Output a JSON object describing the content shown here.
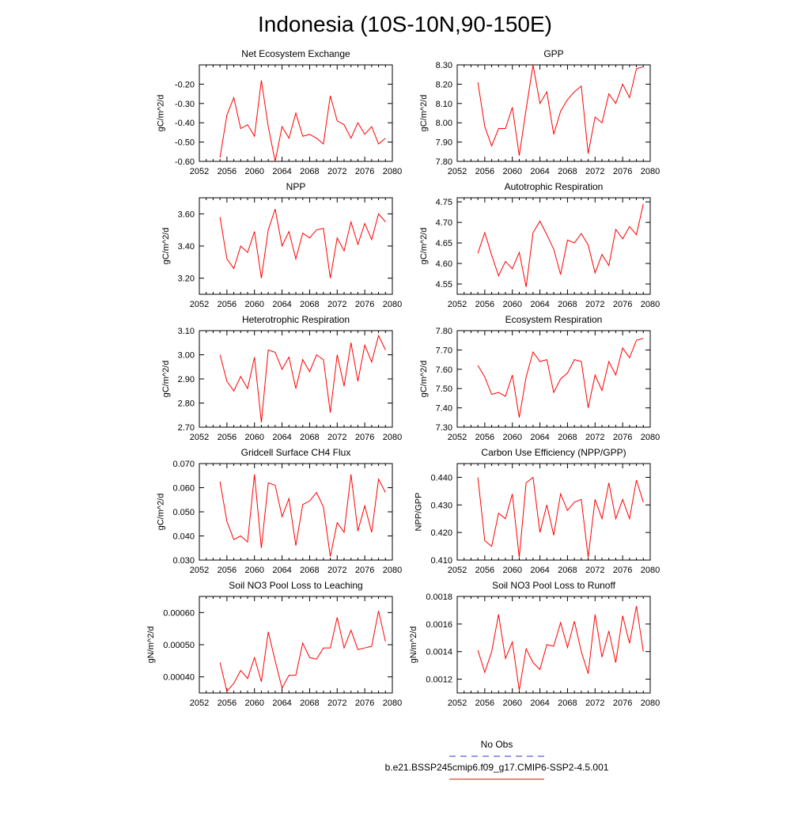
{
  "page": {
    "title": "Indonesia (10S-10N,90-150E)",
    "legend": {
      "obs_label": "No Obs",
      "obs_color": "#3333cc",
      "model_label": "b.e21.BSSP245cmip6.f09_g17.CMIP6-SSP2-4.5.001",
      "model_color": "#ff0000"
    }
  },
  "chart_data": [
    {
      "type": "line",
      "title": "Net Ecosystem Exchange",
      "xlabel": "",
      "ylabel": "gC/m^2/d",
      "xlim": [
        2052,
        2080
      ],
      "ylim": [
        -0.6,
        -0.1
      ],
      "xticks": [
        "2052",
        "2056",
        "2060",
        "2064",
        "2068",
        "2072",
        "2076",
        "2080"
      ],
      "yticks": [
        "-0.60",
        "-0.50",
        "-0.40",
        "-0.30",
        "-0.20"
      ],
      "color": "#ff0000",
      "x": [
        2055,
        2056,
        2057,
        2058,
        2059,
        2060,
        2061,
        2062,
        2063,
        2064,
        2065,
        2066,
        2067,
        2068,
        2069,
        2070,
        2071,
        2072,
        2073,
        2074,
        2075,
        2076,
        2077,
        2078,
        2079
      ],
      "values": [
        -0.58,
        -0.36,
        -0.27,
        -0.43,
        -0.41,
        -0.47,
        -0.18,
        -0.42,
        -0.6,
        -0.42,
        -0.48,
        -0.35,
        -0.47,
        -0.46,
        -0.48,
        -0.51,
        -0.26,
        -0.39,
        -0.41,
        -0.48,
        -0.4,
        -0.46,
        -0.42,
        -0.51,
        -0.48
      ]
    },
    {
      "type": "line",
      "title": "GPP",
      "xlabel": "",
      "ylabel": "gC/m^2/d",
      "xlim": [
        2052,
        2080
      ],
      "ylim": [
        7.8,
        8.3
      ],
      "xticks": [
        "2052",
        "2056",
        "2060",
        "2064",
        "2068",
        "2072",
        "2076",
        "2080"
      ],
      "yticks": [
        "7.80",
        "7.90",
        "8.00",
        "8.10",
        "8.20",
        "8.30"
      ],
      "color": "#ff0000",
      "x": [
        2055,
        2056,
        2057,
        2058,
        2059,
        2060,
        2061,
        2062,
        2063,
        2064,
        2065,
        2066,
        2067,
        2068,
        2069,
        2070,
        2071,
        2072,
        2073,
        2074,
        2075,
        2076,
        2077,
        2078,
        2079
      ],
      "values": [
        8.21,
        7.98,
        7.88,
        7.97,
        7.97,
        8.08,
        7.83,
        8.07,
        8.3,
        8.1,
        8.16,
        7.94,
        8.06,
        8.12,
        8.16,
        8.19,
        7.84,
        8.03,
        8.0,
        8.15,
        8.1,
        8.2,
        8.13,
        8.28,
        8.29
      ]
    },
    {
      "type": "line",
      "title": "NPP",
      "xlabel": "",
      "ylabel": "gC/m^2/d",
      "xlim": [
        2052,
        2080
      ],
      "ylim": [
        3.1,
        3.7
      ],
      "xticks": [
        "2052",
        "2056",
        "2060",
        "2064",
        "2068",
        "2072",
        "2076",
        "2080"
      ],
      "yticks": [
        "3.20",
        "3.40",
        "3.60"
      ],
      "color": "#ff0000",
      "x": [
        2055,
        2056,
        2057,
        2058,
        2059,
        2060,
        2061,
        2062,
        2063,
        2064,
        2065,
        2066,
        2067,
        2068,
        2069,
        2070,
        2071,
        2072,
        2073,
        2074,
        2075,
        2076,
        2077,
        2078,
        2079
      ],
      "values": [
        3.58,
        3.32,
        3.26,
        3.4,
        3.36,
        3.49,
        3.2,
        3.5,
        3.63,
        3.4,
        3.49,
        3.32,
        3.48,
        3.45,
        3.5,
        3.51,
        3.2,
        3.45,
        3.37,
        3.55,
        3.41,
        3.54,
        3.44,
        3.6,
        3.55
      ]
    },
    {
      "type": "line",
      "title": "Autotrophic Respiration",
      "xlabel": "",
      "ylabel": "gC/m^2/d",
      "xlim": [
        2052,
        2080
      ],
      "ylim": [
        4.525,
        4.76
      ],
      "xticks": [
        "2052",
        "2056",
        "2060",
        "2064",
        "2068",
        "2072",
        "2076",
        "2080"
      ],
      "yticks": [
        "4.55",
        "4.60",
        "4.65",
        "4.70",
        "4.75"
      ],
      "color": "#ff0000",
      "x": [
        2055,
        2056,
        2057,
        2058,
        2059,
        2060,
        2061,
        2062,
        2063,
        2064,
        2065,
        2066,
        2067,
        2068,
        2069,
        2070,
        2071,
        2072,
        2073,
        2074,
        2075,
        2076,
        2077,
        2078,
        2079
      ],
      "values": [
        4.625,
        4.675,
        4.62,
        4.57,
        4.605,
        4.587,
        4.627,
        4.543,
        4.675,
        4.703,
        4.67,
        4.635,
        4.573,
        4.657,
        4.65,
        4.673,
        4.645,
        4.577,
        4.622,
        4.595,
        4.683,
        4.66,
        4.69,
        4.67,
        4.745
      ]
    },
    {
      "type": "line",
      "title": "Heterotrophic Respiration",
      "xlabel": "",
      "ylabel": "gC/m^2/d",
      "xlim": [
        2052,
        2080
      ],
      "ylim": [
        2.7,
        3.1
      ],
      "xticks": [
        "2052",
        "2056",
        "2060",
        "2064",
        "2068",
        "2072",
        "2076",
        "2080"
      ],
      "yticks": [
        "2.70",
        "2.80",
        "2.90",
        "3.00",
        "3.10"
      ],
      "color": "#ff0000",
      "x": [
        2055,
        2056,
        2057,
        2058,
        2059,
        2060,
        2061,
        2062,
        2063,
        2064,
        2065,
        2066,
        2067,
        2068,
        2069,
        2070,
        2071,
        2072,
        2073,
        2074,
        2075,
        2076,
        2077,
        2078,
        2079
      ],
      "values": [
        3.0,
        2.89,
        2.85,
        2.91,
        2.86,
        2.99,
        2.72,
        3.02,
        3.01,
        2.94,
        2.99,
        2.86,
        2.98,
        2.93,
        3.0,
        2.98,
        2.76,
        3.0,
        2.87,
        3.05,
        2.89,
        3.04,
        2.97,
        3.08,
        3.02
      ]
    },
    {
      "type": "line",
      "title": "Ecosystem Respiration",
      "xlabel": "",
      "ylabel": "gC/m^2/d",
      "xlim": [
        2052,
        2080
      ],
      "ylim": [
        7.3,
        7.8
      ],
      "xticks": [
        "2052",
        "2056",
        "2060",
        "2064",
        "2068",
        "2072",
        "2076",
        "2080"
      ],
      "yticks": [
        "7.30",
        "7.40",
        "7.50",
        "7.60",
        "7.70",
        "7.80"
      ],
      "color": "#ff0000",
      "x": [
        2055,
        2056,
        2057,
        2058,
        2059,
        2060,
        2061,
        2062,
        2063,
        2064,
        2065,
        2066,
        2067,
        2068,
        2069,
        2070,
        2071,
        2072,
        2073,
        2074,
        2075,
        2076,
        2077,
        2078,
        2079
      ],
      "values": [
        7.62,
        7.56,
        7.47,
        7.48,
        7.46,
        7.57,
        7.35,
        7.56,
        7.69,
        7.64,
        7.65,
        7.48,
        7.55,
        7.58,
        7.65,
        7.64,
        7.4,
        7.57,
        7.49,
        7.64,
        7.57,
        7.71,
        7.66,
        7.75,
        7.76
      ]
    },
    {
      "type": "line",
      "title": "Gridcell Surface CH4 Flux",
      "xlabel": "",
      "ylabel": "gC/m^2/d",
      "xlim": [
        2052,
        2080
      ],
      "ylim": [
        0.03,
        0.07
      ],
      "xticks": [
        "2052",
        "2056",
        "2060",
        "2064",
        "2068",
        "2072",
        "2076",
        "2080"
      ],
      "yticks": [
        "0.030",
        "0.040",
        "0.050",
        "0.060",
        "0.070"
      ],
      "color": "#ff0000",
      "x": [
        2055,
        2056,
        2057,
        2058,
        2059,
        2060,
        2061,
        2062,
        2063,
        2064,
        2065,
        2066,
        2067,
        2068,
        2069,
        2070,
        2071,
        2072,
        2073,
        2074,
        2075,
        2076,
        2077,
        2078,
        2079
      ],
      "values": [
        0.0625,
        0.046,
        0.0385,
        0.04,
        0.0375,
        0.0655,
        0.035,
        0.062,
        0.061,
        0.048,
        0.0555,
        0.036,
        0.053,
        0.0545,
        0.058,
        0.052,
        0.0315,
        0.0455,
        0.0415,
        0.0655,
        0.042,
        0.0525,
        0.0415,
        0.0635,
        0.058
      ]
    },
    {
      "type": "line",
      "title": "Carbon Use Efficiency (NPP/GPP)",
      "xlabel": "",
      "ylabel": "NPP/GPP",
      "xlim": [
        2052,
        2080
      ],
      "ylim": [
        0.41,
        0.445
      ],
      "xticks": [
        "2052",
        "2056",
        "2060",
        "2064",
        "2068",
        "2072",
        "2076",
        "2080"
      ],
      "yticks": [
        "0.410",
        "0.420",
        "0.430",
        "0.440"
      ],
      "color": "#ff0000",
      "x": [
        2055,
        2056,
        2057,
        2058,
        2059,
        2060,
        2061,
        2062,
        2063,
        2064,
        2065,
        2066,
        2067,
        2068,
        2069,
        2070,
        2071,
        2072,
        2073,
        2074,
        2075,
        2076,
        2077,
        2078,
        2079
      ],
      "values": [
        0.44,
        0.417,
        0.415,
        0.427,
        0.425,
        0.434,
        0.411,
        0.438,
        0.44,
        0.42,
        0.43,
        0.419,
        0.434,
        0.428,
        0.431,
        0.432,
        0.411,
        0.432,
        0.425,
        0.438,
        0.425,
        0.432,
        0.425,
        0.439,
        0.431
      ]
    },
    {
      "type": "line",
      "title": "Soil NO3 Pool Loss to Leaching",
      "xlabel": "",
      "ylabel": "gN/m^2/d",
      "xlim": [
        2052,
        2080
      ],
      "ylim": [
        0.00035,
        0.00065
      ],
      "xticks": [
        "2052",
        "2056",
        "2060",
        "2064",
        "2068",
        "2072",
        "2076",
        "2080"
      ],
      "yticks": [
        "0.00040",
        "0.00050",
        "0.00060"
      ],
      "color": "#ff0000",
      "x": [
        2055,
        2056,
        2057,
        2058,
        2059,
        2060,
        2061,
        2062,
        2063,
        2064,
        2065,
        2066,
        2067,
        2068,
        2069,
        2070,
        2071,
        2072,
        2073,
        2074,
        2075,
        2076,
        2077,
        2078,
        2079
      ],
      "values": [
        0.000445,
        0.000355,
        0.00038,
        0.00042,
        0.000395,
        0.00046,
        0.000385,
        0.00054,
        0.00045,
        0.000365,
        0.000405,
        0.000405,
        0.000505,
        0.00046,
        0.000455,
        0.00049,
        0.00049,
        0.000585,
        0.00049,
        0.000545,
        0.000485,
        0.00049,
        0.000495,
        0.000605,
        0.00051
      ]
    },
    {
      "type": "line",
      "title": "Soil NO3 Pool Loss to Runoff",
      "xlabel": "",
      "ylabel": "gN/m^2/d",
      "xlim": [
        2052,
        2080
      ],
      "ylim": [
        0.0011,
        0.0018
      ],
      "xticks": [
        "2052",
        "2056",
        "2060",
        "2064",
        "2068",
        "2072",
        "2076",
        "2080"
      ],
      "yticks": [
        "0.0012",
        "0.0014",
        "0.0016",
        "0.0018"
      ],
      "color": "#ff0000",
      "x": [
        2055,
        2056,
        2057,
        2058,
        2059,
        2060,
        2061,
        2062,
        2063,
        2064,
        2065,
        2066,
        2067,
        2068,
        2069,
        2070,
        2071,
        2072,
        2073,
        2074,
        2075,
        2076,
        2077,
        2078,
        2079
      ],
      "values": [
        0.00141,
        0.00125,
        0.0014,
        0.00167,
        0.00135,
        0.00147,
        0.00112,
        0.00142,
        0.00132,
        0.00127,
        0.00145,
        0.00144,
        0.00161,
        0.00143,
        0.00162,
        0.0014,
        0.00124,
        0.00167,
        0.00136,
        0.00155,
        0.00132,
        0.00166,
        0.00146,
        0.00173,
        0.0014
      ]
    }
  ]
}
